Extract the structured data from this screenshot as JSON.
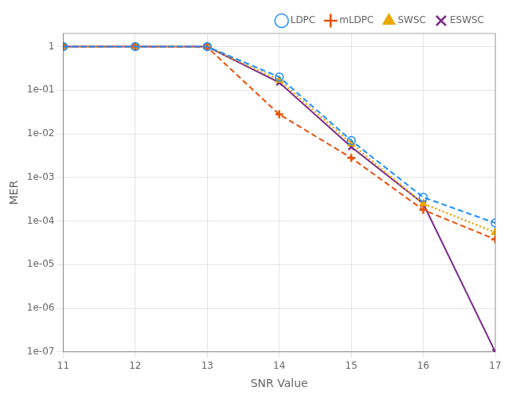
{
  "chart_data": {
    "type": "line",
    "xlabel": "SNR Value",
    "ylabel": "MER",
    "log": "y",
    "xlim": [
      11,
      17
    ],
    "xticks": [
      11,
      12,
      13,
      14,
      15,
      16,
      17
    ],
    "ylim": [
      1e-07,
      2.0
    ],
    "yticks": [
      {
        "value": 1e-07,
        "label": "1e-07"
      },
      {
        "value": 1e-06,
        "label": "1e-06"
      },
      {
        "value": 1e-05,
        "label": "1e-05"
      },
      {
        "value": 0.0001,
        "label": "1e-04"
      },
      {
        "value": 0.001,
        "label": "1e-03"
      },
      {
        "value": 0.01,
        "label": "1e-02"
      },
      {
        "value": 0.1,
        "label": "1e-01"
      },
      1
    ],
    "grid": true,
    "legend": "upper right",
    "x": [
      11,
      12,
      13,
      14,
      15,
      16,
      17
    ],
    "series": [
      {
        "name": "LDPC",
        "color": "#1f8fff",
        "marker": "circle",
        "line_style": "dashed",
        "values": [
          1.0,
          1.0,
          1.0,
          0.2,
          0.007,
          0.00035,
          9e-05
        ]
      },
      {
        "name": "mLDPC",
        "color": "#e8520a",
        "marker": "plus",
        "line_style": "dashed",
        "values": [
          1.0,
          1.0,
          0.97,
          0.028,
          0.0028,
          0.00018,
          3.8e-05
        ]
      },
      {
        "name": "SWSC",
        "color": "#e8a800",
        "marker": "triangle",
        "line_style": "dotted",
        "values": [
          1.0,
          1.0,
          1.0,
          0.17,
          0.006,
          0.00025,
          5.5e-05
        ]
      },
      {
        "name": "ESWSC",
        "color": "#7b2d8b",
        "marker": "x",
        "line_style": "solid",
        "values": [
          1.0,
          1.0,
          1.0,
          0.15,
          0.005,
          0.00025,
          1e-07
        ]
      }
    ]
  }
}
